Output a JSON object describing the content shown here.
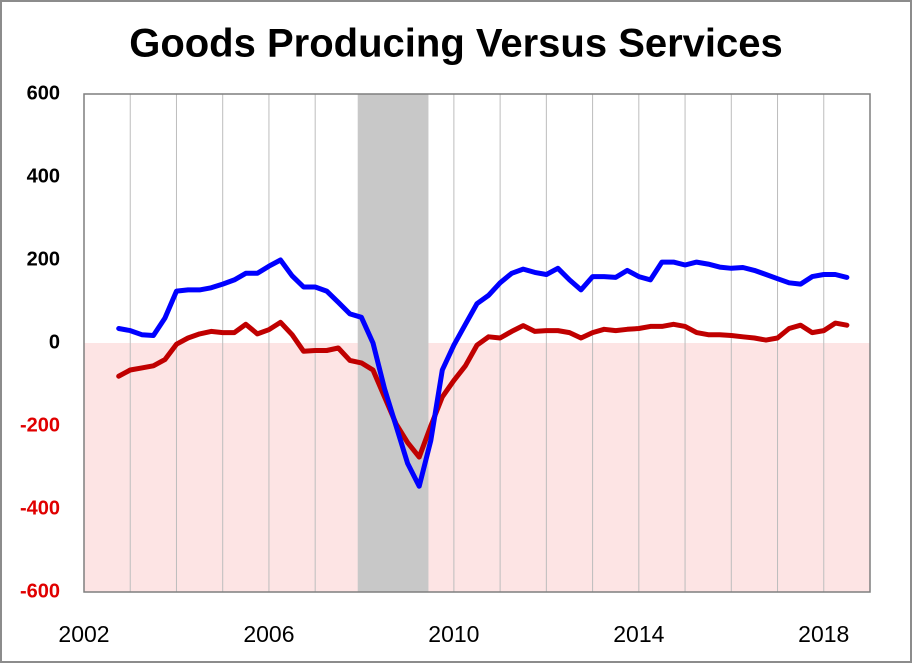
{
  "chart_data": {
    "type": "line",
    "title": "Goods Producing Versus Services",
    "x": [
      2002.75,
      2003,
      2003.25,
      2003.5,
      2003.75,
      2004,
      2004.25,
      2004.5,
      2004.75,
      2005,
      2005.25,
      2005.5,
      2005.75,
      2006,
      2006.25,
      2006.5,
      2006.75,
      2007,
      2007.25,
      2007.5,
      2007.75,
      2008,
      2008.25,
      2008.5,
      2008.75,
      2009,
      2009.25,
      2009.5,
      2009.75,
      2010,
      2010.25,
      2010.5,
      2010.75,
      2011,
      2011.25,
      2011.5,
      2011.75,
      2012,
      2012.25,
      2012.5,
      2012.75,
      2013,
      2013.25,
      2013.5,
      2013.75,
      2014,
      2014.25,
      2014.5,
      2014.75,
      2015,
      2015.25,
      2015.5,
      2015.75,
      2016,
      2016.25,
      2016.5,
      2016.75,
      2017,
      2017.25,
      2017.5,
      2017.75,
      2018,
      2018.25,
      2018.5
    ],
    "series": [
      {
        "color": "#0000ff",
        "values": [
          35,
          30,
          20,
          18,
          60,
          125,
          128,
          128,
          133,
          142,
          152,
          168,
          168,
          185,
          200,
          162,
          135,
          135,
          125,
          98,
          70,
          62,
          0,
          -110,
          -200,
          -290,
          -345,
          -235,
          -65,
          -5,
          45,
          95,
          115,
          145,
          168,
          178,
          170,
          165,
          180,
          152,
          128,
          160,
          160,
          158,
          175,
          160,
          152,
          195,
          195,
          188,
          195,
          190,
          183,
          180,
          182,
          175,
          165,
          155,
          145,
          142,
          160,
          165,
          165,
          158
        ]
      },
      {
        "color": "#c00000",
        "values": [
          -80,
          -65,
          -60,
          -55,
          -40,
          -3,
          12,
          22,
          28,
          25,
          25,
          45,
          22,
          32,
          50,
          20,
          -20,
          -18,
          -18,
          -12,
          -42,
          -48,
          -65,
          -130,
          -195,
          -240,
          -275,
          -200,
          -130,
          -90,
          -55,
          -5,
          15,
          12,
          28,
          42,
          28,
          30,
          30,
          25,
          12,
          25,
          33,
          30,
          33,
          35,
          40,
          40,
          45,
          40,
          25,
          20,
          20,
          18,
          15,
          12,
          7,
          12,
          35,
          43,
          25,
          30,
          48,
          43
        ]
      }
    ],
    "xlim": [
      2002,
      2019
    ],
    "xticks": [
      2002,
      2006,
      2010,
      2014,
      2018
    ],
    "x_gridlines": [
      2003,
      2004,
      2005,
      2006,
      2007,
      2008,
      2009,
      2010,
      2011,
      2012,
      2013,
      2014,
      2015,
      2016,
      2017,
      2018
    ],
    "ylim": [
      -600,
      600
    ],
    "yticks": [
      600,
      400,
      200,
      0,
      -200,
      -400,
      -600
    ],
    "recession": {
      "start": 2007.92,
      "end": 2009.45,
      "color": "#c8c8c8"
    },
    "negative_fill": "#fde4e4",
    "tick_label_color": "#000000",
    "negative_tick_label_color": "#e00000",
    "grid_color": "#bdbdbd"
  }
}
